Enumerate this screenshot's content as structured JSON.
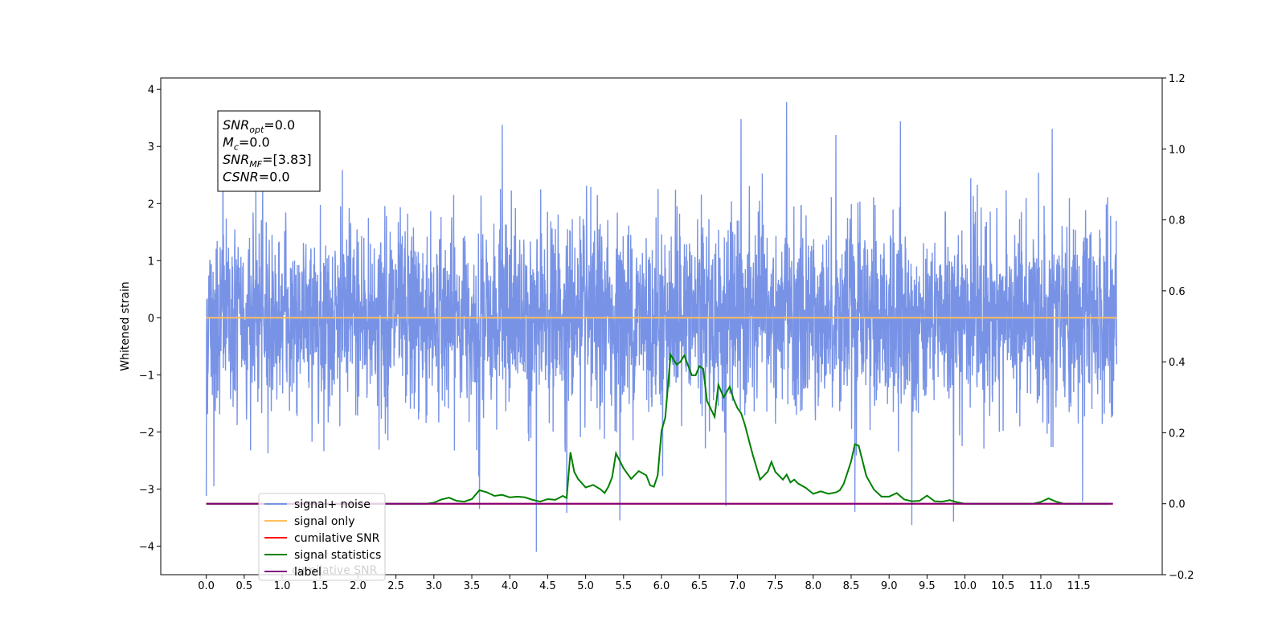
{
  "chart_data": {
    "type": "line",
    "ylabel": "Whitened strain",
    "ylabel_right": "",
    "xlabel": "",
    "title": "",
    "xlim": [
      -0.6,
      12.6
    ],
    "ylim": [
      -4.5,
      4.2
    ],
    "ylim_right": [
      -0.2,
      1.2
    ],
    "x_ticks": [
      "0.0",
      "0.5",
      "1.0",
      "1.5",
      "2.0",
      "2.5",
      "3.0",
      "3.5",
      "4.0",
      "4.5",
      "5.0",
      "5.5",
      "6.0",
      "6.5",
      "7.0",
      "7.5",
      "8.0",
      "8.5",
      "9.0",
      "9.5",
      "10.0",
      "10.5",
      "11.0",
      "11.5"
    ],
    "y_ticks": [
      "4",
      "3",
      "2",
      "1",
      "0",
      "−1",
      "−2",
      "−3",
      "−4"
    ],
    "y_ticks_right": [
      "1.2",
      "1.0",
      "0.8",
      "0.6",
      "0.4",
      "0.2",
      "0.0",
      "−0.2"
    ],
    "grid": false,
    "legend_position": "lower-left",
    "annotation": {
      "lines": [
        {
          "base": "SNR",
          "sub": "opt",
          "rest": "=0.0"
        },
        {
          "base": "M",
          "sub": "c",
          "rest": "=0.0"
        },
        {
          "base": "SNR",
          "sub": "MF",
          "rest": "=[3.83]"
        },
        {
          "base": "CSNR",
          "sub": "",
          "rest": "=0.0"
        }
      ]
    },
    "series": [
      {
        "name": "signal+ noise",
        "color": "#7893e6",
        "axis": "left",
        "x_range": [
          0.0,
          12.0
        ],
        "noise_envelope": {
          "typical_high": 2.2,
          "typical_low": -2.3,
          "max": 3.78,
          "min": -4.1
        },
        "spikes": [
          {
            "x": 0.22,
            "y": 3.62
          },
          {
            "x": 0.1,
            "y": -2.95
          },
          {
            "x": 0.0,
            "y": -3.12
          },
          {
            "x": 3.9,
            "y": 3.38
          },
          {
            "x": 7.05,
            "y": 3.48
          },
          {
            "x": 7.65,
            "y": 3.78
          },
          {
            "x": 9.15,
            "y": 3.44
          },
          {
            "x": 11.15,
            "y": 3.31
          },
          {
            "x": 8.3,
            "y": 3.2
          },
          {
            "x": 4.35,
            "y": -4.1
          },
          {
            "x": 5.45,
            "y": -3.55
          },
          {
            "x": 9.3,
            "y": -3.63
          },
          {
            "x": 9.85,
            "y": -3.57
          },
          {
            "x": 6.85,
            "y": -3.3
          },
          {
            "x": 3.6,
            "y": -3.35
          },
          {
            "x": 4.75,
            "y": -3.42
          },
          {
            "x": 8.55,
            "y": -3.4
          },
          {
            "x": 11.55,
            "y": -3.22
          }
        ]
      },
      {
        "name": "signal only",
        "color": "#ffbe5c",
        "axis": "left",
        "x": [
          0.0,
          12.0
        ],
        "y": [
          0.0,
          0.0
        ]
      },
      {
        "name": "cumilative SNR",
        "color": "#ff0000",
        "axis": "right",
        "x": [
          0.0,
          11.95
        ],
        "y": [
          0.0,
          0.0
        ]
      },
      {
        "name": "signal statistics",
        "color": "#008000",
        "axis": "right",
        "x": [
          0.0,
          2.9,
          3.0,
          3.1,
          3.2,
          3.3,
          3.4,
          3.5,
          3.6,
          3.7,
          3.8,
          3.9,
          4.0,
          4.1,
          4.2,
          4.3,
          4.4,
          4.5,
          4.6,
          4.7,
          4.75,
          4.8,
          4.85,
          4.9,
          5.0,
          5.1,
          5.2,
          5.25,
          5.3,
          5.35,
          5.4,
          5.5,
          5.6,
          5.7,
          5.8,
          5.85,
          5.9,
          5.95,
          6.0,
          6.05,
          6.12,
          6.2,
          6.25,
          6.3,
          6.4,
          6.45,
          6.5,
          6.55,
          6.6,
          6.7,
          6.75,
          6.82,
          6.9,
          6.95,
          7.0,
          7.05,
          7.1,
          7.2,
          7.3,
          7.4,
          7.45,
          7.5,
          7.6,
          7.65,
          7.7,
          7.75,
          7.8,
          7.9,
          8.0,
          8.1,
          8.2,
          8.3,
          8.35,
          8.4,
          8.45,
          8.5,
          8.55,
          8.6,
          8.7,
          8.8,
          8.9,
          9.0,
          9.1,
          9.2,
          9.3,
          9.4,
          9.5,
          9.6,
          9.7,
          9.8,
          9.9,
          10.0,
          10.5,
          10.9,
          11.0,
          11.1,
          11.2,
          11.3,
          11.9
        ],
        "y": [
          0.0,
          0.0,
          0.003,
          0.012,
          0.017,
          0.008,
          0.006,
          0.013,
          0.038,
          0.032,
          0.022,
          0.025,
          0.018,
          0.02,
          0.018,
          0.011,
          0.006,
          0.013,
          0.011,
          0.022,
          0.016,
          0.145,
          0.09,
          0.07,
          0.046,
          0.053,
          0.04,
          0.03,
          0.048,
          0.075,
          0.142,
          0.1,
          0.07,
          0.092,
          0.08,
          0.052,
          0.048,
          0.08,
          0.205,
          0.243,
          0.42,
          0.392,
          0.4,
          0.418,
          0.362,
          0.362,
          0.388,
          0.38,
          0.29,
          0.245,
          0.335,
          0.3,
          0.33,
          0.295,
          0.27,
          0.255,
          0.222,
          0.14,
          0.068,
          0.09,
          0.118,
          0.09,
          0.068,
          0.082,
          0.06,
          0.068,
          0.057,
          0.045,
          0.028,
          0.035,
          0.028,
          0.032,
          0.038,
          0.055,
          0.087,
          0.12,
          0.168,
          0.163,
          0.078,
          0.04,
          0.02,
          0.02,
          0.03,
          0.012,
          0.007,
          0.008,
          0.023,
          0.007,
          0.006,
          0.01,
          0.004,
          0.0,
          0.0,
          0.0,
          0.005,
          0.015,
          0.006,
          0.0,
          0.0
        ]
      },
      {
        "name": "label",
        "color": "#800080",
        "axis": "right",
        "x": [
          0.0,
          11.95
        ],
        "y": [
          0.0,
          0.0
        ]
      }
    ],
    "hidden_legend_text": "cumilative SNR"
  }
}
